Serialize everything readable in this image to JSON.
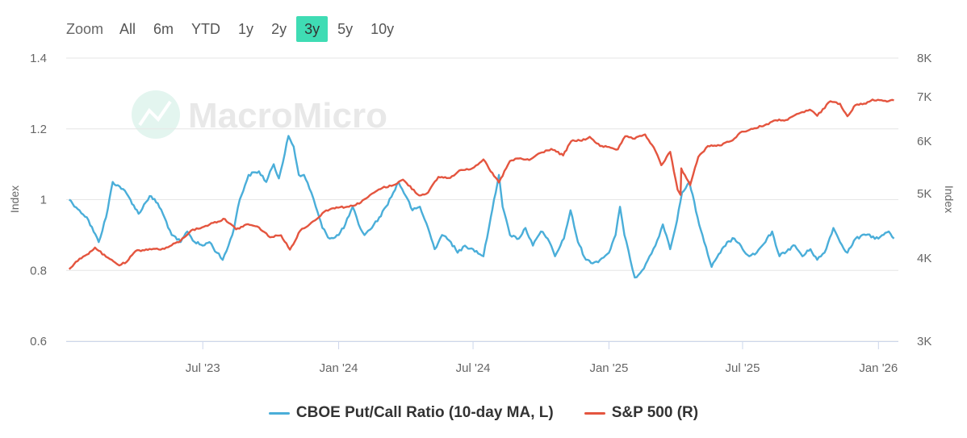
{
  "zoom": {
    "label": "Zoom",
    "buttons": [
      "All",
      "6m",
      "YTD",
      "1y",
      "2y",
      "3y",
      "5y",
      "10y"
    ],
    "active": "3y",
    "active_color": "#3fdcb4"
  },
  "watermark": {
    "text": "MacroMicro"
  },
  "chart_data": {
    "type": "line",
    "x_range": [
      "2022-12-28",
      "2026-01-28"
    ],
    "x_ticks": [
      {
        "date": "2023-07-01",
        "label": "Jul '23"
      },
      {
        "date": "2024-01-01",
        "label": "Jan '24"
      },
      {
        "date": "2024-07-01",
        "label": "Jul '24"
      },
      {
        "date": "2025-01-01",
        "label": "Jan '25"
      },
      {
        "date": "2025-07-01",
        "label": "Jul '25"
      },
      {
        "date": "2026-01-01",
        "label": "Jan '26"
      }
    ],
    "y_left": {
      "label": "Index",
      "min": 0.6,
      "max": 1.4,
      "ticks": [
        0.6,
        0.8,
        1,
        1.2,
        1.4
      ],
      "tick_labels": [
        "0.6",
        "0.8",
        "1",
        "1.2",
        "1.4"
      ]
    },
    "y_right": {
      "label": "Index",
      "scale": "log",
      "min": 3000,
      "max": 8000,
      "ticks": [
        3000,
        4000,
        5000,
        6000,
        7000,
        8000
      ],
      "tick_labels": [
        "3K",
        "4K",
        "5K",
        "6K",
        "7K",
        "8K"
      ]
    },
    "series": [
      {
        "name": "CBOE Put/Call Ratio (10-day MA, L)",
        "axis": "left",
        "color": "#4aaed9",
        "points": [
          [
            "2023-01-01",
            1.0
          ],
          [
            "2023-01-15",
            0.97
          ],
          [
            "2023-01-25",
            0.95
          ],
          [
            "2023-02-10",
            0.88
          ],
          [
            "2023-02-20",
            0.95
          ],
          [
            "2023-03-01",
            1.05
          ],
          [
            "2023-03-15",
            1.03
          ],
          [
            "2023-03-25",
            1.0
          ],
          [
            "2023-04-05",
            0.96
          ],
          [
            "2023-04-20",
            1.01
          ],
          [
            "2023-05-01",
            0.99
          ],
          [
            "2023-05-10",
            0.95
          ],
          [
            "2023-05-20",
            0.9
          ],
          [
            "2023-06-01",
            0.88
          ],
          [
            "2023-06-10",
            0.91
          ],
          [
            "2023-06-20",
            0.88
          ],
          [
            "2023-07-01",
            0.87
          ],
          [
            "2023-07-10",
            0.88
          ],
          [
            "2023-07-20",
            0.85
          ],
          [
            "2023-07-28",
            0.83
          ],
          [
            "2023-08-10",
            0.9
          ],
          [
            "2023-08-20",
            1.0
          ],
          [
            "2023-09-01",
            1.07
          ],
          [
            "2023-09-15",
            1.08
          ],
          [
            "2023-09-25",
            1.05
          ],
          [
            "2023-10-05",
            1.1
          ],
          [
            "2023-10-12",
            1.06
          ],
          [
            "2023-10-20",
            1.13
          ],
          [
            "2023-10-25",
            1.18
          ],
          [
            "2023-11-01",
            1.15
          ],
          [
            "2023-11-08",
            1.07
          ],
          [
            "2023-11-15",
            1.07
          ],
          [
            "2023-11-25",
            1.02
          ],
          [
            "2023-12-01",
            0.98
          ],
          [
            "2023-12-10",
            0.92
          ],
          [
            "2023-12-20",
            0.89
          ],
          [
            "2024-01-01",
            0.9
          ],
          [
            "2024-01-10",
            0.93
          ],
          [
            "2024-01-20",
            0.98
          ],
          [
            "2024-01-28",
            0.93
          ],
          [
            "2024-02-05",
            0.9
          ],
          [
            "2024-02-15",
            0.92
          ],
          [
            "2024-02-25",
            0.95
          ],
          [
            "2024-03-05",
            0.98
          ],
          [
            "2024-03-15",
            1.02
          ],
          [
            "2024-03-22",
            1.05
          ],
          [
            "2024-04-01",
            1.01
          ],
          [
            "2024-04-10",
            0.97
          ],
          [
            "2024-04-20",
            0.98
          ],
          [
            "2024-05-01",
            0.92
          ],
          [
            "2024-05-10",
            0.86
          ],
          [
            "2024-05-20",
            0.9
          ],
          [
            "2024-06-01",
            0.88
          ],
          [
            "2024-06-10",
            0.85
          ],
          [
            "2024-06-20",
            0.87
          ],
          [
            "2024-07-01",
            0.86
          ],
          [
            "2024-07-15",
            0.84
          ],
          [
            "2024-07-25",
            0.95
          ],
          [
            "2024-08-05",
            1.07
          ],
          [
            "2024-08-10",
            0.98
          ],
          [
            "2024-08-20",
            0.9
          ],
          [
            "2024-09-01",
            0.89
          ],
          [
            "2024-09-10",
            0.92
          ],
          [
            "2024-09-20",
            0.87
          ],
          [
            "2024-10-01",
            0.91
          ],
          [
            "2024-10-10",
            0.89
          ],
          [
            "2024-10-20",
            0.84
          ],
          [
            "2024-11-01",
            0.89
          ],
          [
            "2024-11-10",
            0.97
          ],
          [
            "2024-11-20",
            0.88
          ],
          [
            "2024-12-01",
            0.83
          ],
          [
            "2024-12-10",
            0.82
          ],
          [
            "2024-12-20",
            0.83
          ],
          [
            "2025-01-01",
            0.85
          ],
          [
            "2025-01-10",
            0.9
          ],
          [
            "2025-01-16",
            0.98
          ],
          [
            "2025-01-22",
            0.9
          ],
          [
            "2025-01-30",
            0.83
          ],
          [
            "2025-02-05",
            0.78
          ],
          [
            "2025-02-15",
            0.8
          ],
          [
            "2025-02-25",
            0.84
          ],
          [
            "2025-03-05",
            0.87
          ],
          [
            "2025-03-15",
            0.93
          ],
          [
            "2025-03-25",
            0.86
          ],
          [
            "2025-04-01",
            0.92
          ],
          [
            "2025-04-10",
            1.02
          ],
          [
            "2025-04-20",
            1.05
          ],
          [
            "2025-05-01",
            0.95
          ],
          [
            "2025-05-10",
            0.88
          ],
          [
            "2025-05-20",
            0.81
          ],
          [
            "2025-06-01",
            0.85
          ],
          [
            "2025-06-10",
            0.88
          ],
          [
            "2025-06-20",
            0.89
          ],
          [
            "2025-07-01",
            0.86
          ],
          [
            "2025-07-10",
            0.84
          ],
          [
            "2025-07-20",
            0.85
          ],
          [
            "2025-08-01",
            0.88
          ],
          [
            "2025-08-10",
            0.91
          ],
          [
            "2025-08-20",
            0.84
          ],
          [
            "2025-09-01",
            0.86
          ],
          [
            "2025-09-10",
            0.87
          ],
          [
            "2025-09-20",
            0.84
          ],
          [
            "2025-10-01",
            0.86
          ],
          [
            "2025-10-10",
            0.83
          ],
          [
            "2025-10-20",
            0.85
          ],
          [
            "2025-11-01",
            0.92
          ],
          [
            "2025-11-10",
            0.88
          ],
          [
            "2025-11-20",
            0.85
          ],
          [
            "2025-12-01",
            0.89
          ],
          [
            "2025-12-15",
            0.9
          ],
          [
            "2026-01-01",
            0.89
          ],
          [
            "2026-01-15",
            0.91
          ],
          [
            "2026-01-22",
            0.89
          ]
        ]
      },
      {
        "name": "S&P 500 (R)",
        "axis": "right",
        "color": "#e4553f",
        "points": [
          [
            "2023-01-01",
            3850
          ],
          [
            "2023-01-10",
            3950
          ],
          [
            "2023-01-25",
            4050
          ],
          [
            "2023-02-05",
            4150
          ],
          [
            "2023-02-20",
            4020
          ],
          [
            "2023-03-10",
            3900
          ],
          [
            "2023-03-20",
            3950
          ],
          [
            "2023-04-01",
            4100
          ],
          [
            "2023-04-20",
            4130
          ],
          [
            "2023-05-10",
            4130
          ],
          [
            "2023-06-01",
            4250
          ],
          [
            "2023-06-15",
            4400
          ],
          [
            "2023-06-30",
            4450
          ],
          [
            "2023-07-15",
            4520
          ],
          [
            "2023-07-31",
            4580
          ],
          [
            "2023-08-15",
            4420
          ],
          [
            "2023-08-31",
            4500
          ],
          [
            "2023-09-15",
            4450
          ],
          [
            "2023-09-30",
            4300
          ],
          [
            "2023-10-15",
            4330
          ],
          [
            "2023-10-27",
            4120
          ],
          [
            "2023-11-10",
            4400
          ],
          [
            "2023-11-30",
            4560
          ],
          [
            "2023-12-15",
            4720
          ],
          [
            "2023-12-29",
            4770
          ],
          [
            "2024-01-15",
            4780
          ],
          [
            "2024-01-31",
            4850
          ],
          [
            "2024-02-15",
            5000
          ],
          [
            "2024-02-29",
            5100
          ],
          [
            "2024-03-15",
            5150
          ],
          [
            "2024-03-28",
            5250
          ],
          [
            "2024-04-19",
            4970
          ],
          [
            "2024-05-01",
            5020
          ],
          [
            "2024-05-15",
            5300
          ],
          [
            "2024-05-31",
            5280
          ],
          [
            "2024-06-15",
            5430
          ],
          [
            "2024-06-30",
            5460
          ],
          [
            "2024-07-15",
            5630
          ],
          [
            "2024-07-25",
            5400
          ],
          [
            "2024-08-05",
            5200
          ],
          [
            "2024-08-20",
            5600
          ],
          [
            "2024-09-01",
            5650
          ],
          [
            "2024-09-15",
            5620
          ],
          [
            "2024-09-30",
            5760
          ],
          [
            "2024-10-15",
            5840
          ],
          [
            "2024-10-31",
            5710
          ],
          [
            "2024-11-11",
            6000
          ],
          [
            "2024-11-30",
            6030
          ],
          [
            "2024-12-06",
            6090
          ],
          [
            "2024-12-20",
            5900
          ],
          [
            "2025-01-01",
            5880
          ],
          [
            "2025-01-13",
            5830
          ],
          [
            "2025-01-23",
            6100
          ],
          [
            "2025-02-05",
            6050
          ],
          [
            "2025-02-19",
            6140
          ],
          [
            "2025-03-05",
            5800
          ],
          [
            "2025-03-13",
            5520
          ],
          [
            "2025-03-25",
            5780
          ],
          [
            "2025-04-04",
            5070
          ],
          [
            "2025-04-08",
            4980
          ],
          [
            "2025-04-09",
            5460
          ],
          [
            "2025-04-21",
            5150
          ],
          [
            "2025-05-02",
            5680
          ],
          [
            "2025-05-15",
            5900
          ],
          [
            "2025-05-31",
            5910
          ],
          [
            "2025-06-15",
            6000
          ],
          [
            "2025-06-30",
            6200
          ],
          [
            "2025-07-15",
            6260
          ],
          [
            "2025-07-31",
            6340
          ],
          [
            "2025-08-15",
            6450
          ],
          [
            "2025-08-31",
            6460
          ],
          [
            "2025-09-15",
            6600
          ],
          [
            "2025-09-30",
            6690
          ],
          [
            "2025-10-10",
            6550
          ],
          [
            "2025-10-28",
            6890
          ],
          [
            "2025-11-10",
            6830
          ],
          [
            "2025-11-20",
            6540
          ],
          [
            "2025-12-01",
            6800
          ],
          [
            "2025-12-15",
            6830
          ],
          [
            "2025-12-24",
            6930
          ],
          [
            "2026-01-10",
            6900
          ],
          [
            "2026-01-22",
            6910
          ]
        ]
      }
    ]
  }
}
